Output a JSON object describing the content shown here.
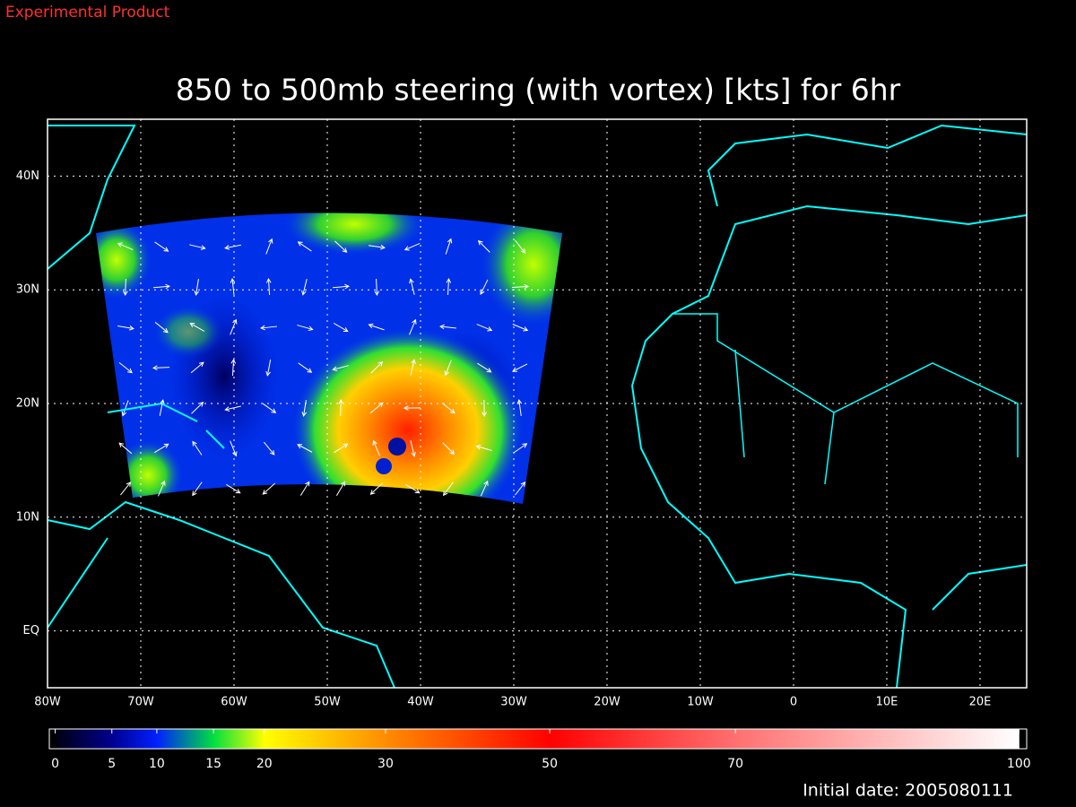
{
  "header": {
    "note": "Experimental Product",
    "footer": "Initial date: 2005080111"
  },
  "chart_data": {
    "type": "map",
    "title": "850 to 500mb steering (with vortex) [kts] for 6hr",
    "xlim": [
      -80,
      25
    ],
    "xticks": [
      {
        "value": -80,
        "label": "80W"
      },
      {
        "value": -70,
        "label": "70W"
      },
      {
        "value": -60,
        "label": "60W"
      },
      {
        "value": -50,
        "label": "50W"
      },
      {
        "value": -40,
        "label": "40W"
      },
      {
        "value": -30,
        "label": "30W"
      },
      {
        "value": -20,
        "label": "20W"
      },
      {
        "value": -10,
        "label": "10W"
      },
      0,
      {
        "value": 10,
        "label": "10E"
      },
      {
        "value": 20,
        "label": "20E"
      }
    ],
    "ylim": [
      -5,
      45
    ],
    "yticks": [
      {
        "value": 0,
        "label": "EQ"
      },
      {
        "value": 10,
        "label": "10N"
      },
      {
        "value": 20,
        "label": "20N"
      },
      {
        "value": 30,
        "label": "30N"
      },
      {
        "value": 40,
        "label": "40N"
      }
    ],
    "grid": true,
    "colorbar": {
      "ticks": [
        0,
        5,
        10,
        15,
        20,
        30,
        50,
        70,
        100
      ],
      "colors": [
        "#000010",
        "#000090",
        "#0020ff",
        "#00e040",
        "#ffff00",
        "#ff8c00",
        "#ff0000",
        "#ff7070",
        "#ffffff"
      ]
    }
  }
}
